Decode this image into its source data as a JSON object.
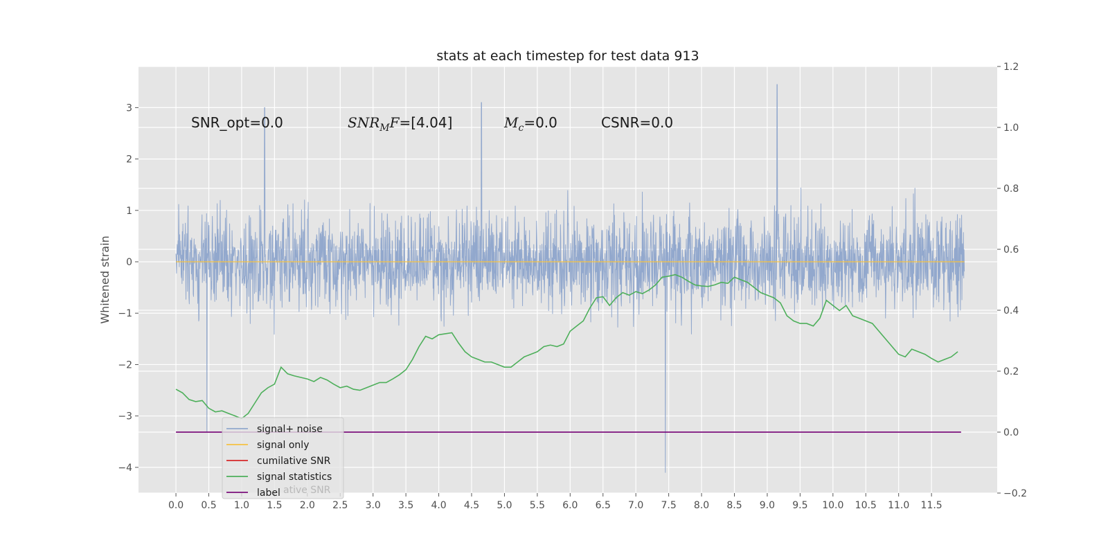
{
  "chart_data": {
    "type": "line",
    "title": "stats at each timestep for test data 913",
    "ylabel": "Whitened strain",
    "xlim": [
      -0.57,
      12.5
    ],
    "ylim": [
      -4.5,
      3.8
    ],
    "y2lim": [
      -0.2,
      1.2
    ],
    "grid": true,
    "legend_placement": "lower-left",
    "x_ticks": [
      "0.0",
      "0.5",
      "1.0",
      "1.5",
      "2.0",
      "2.5",
      "3.0",
      "3.5",
      "4.0",
      "4.5",
      "5.0",
      "5.5",
      "6.0",
      "6.5",
      "7.0",
      "7.5",
      "8.0",
      "8.5",
      "9.0",
      "9.5",
      "10.0",
      "10.5",
      "11.0",
      "11.5"
    ],
    "y_ticks": [
      "3",
      "2",
      "1",
      "0",
      "−1",
      "−2",
      "−3",
      "−4"
    ],
    "y2_ticks": [
      "1.2",
      "1.0",
      "0.8",
      "0.6",
      "0.4",
      "0.2",
      "0.0",
      "−0.2"
    ],
    "annotations": {
      "snr_opt": "SNR_opt=0.0",
      "snr_mf_main": "SNR",
      "snr_mf_sub": "M",
      "snr_mf_tail": "F",
      "snr_mf_value": "=[4.04]",
      "mc_main": "M",
      "mc_sub": "c",
      "mc_value": "=0.0",
      "csnr": "CSNR=0.0"
    },
    "series": [
      {
        "name": "signal+ noise",
        "color": "#92a8cd",
        "axis": "left",
        "x_range": [
          0.0,
          12.0
        ],
        "noise_range": [
          -1.6,
          1.6
        ],
        "peaks": [
          [
            0.47,
            -3.3
          ],
          [
            1.35,
            3.0
          ],
          [
            4.65,
            3.1
          ],
          [
            7.45,
            -4.1
          ],
          [
            9.15,
            3.45
          ],
          [
            6.0,
            -0.3
          ]
        ]
      },
      {
        "name": "signal only",
        "color": "#f5c242",
        "axis": "left",
        "x": [
          0.0,
          12.0
        ],
        "values": [
          0.0,
          0.0
        ]
      },
      {
        "name": "cumilative SNR",
        "color": "#d62728",
        "axis": "right",
        "x": [
          0.0,
          12.0
        ],
        "values": [
          0.0,
          0.0
        ]
      },
      {
        "name": "signal statistics",
        "color": "#4daf5a",
        "axis": "left",
        "x": [
          0.0,
          0.1,
          0.2,
          0.3,
          0.4,
          0.5,
          0.6,
          0.7,
          0.8,
          0.9,
          1.0,
          1.1,
          1.2,
          1.3,
          1.4,
          1.5,
          1.6,
          1.7,
          1.8,
          1.9,
          2.0,
          2.1,
          2.2,
          2.3,
          2.4,
          2.5,
          2.6,
          2.7,
          2.8,
          2.9,
          3.0,
          3.1,
          3.2,
          3.3,
          3.4,
          3.5,
          3.6,
          3.7,
          3.8,
          3.9,
          4.0,
          4.1,
          4.2,
          4.3,
          4.4,
          4.5,
          4.6,
          4.7,
          4.8,
          4.9,
          5.0,
          5.1,
          5.2,
          5.3,
          5.4,
          5.5,
          5.6,
          5.7,
          5.8,
          5.9,
          6.0,
          6.1,
          6.2,
          6.3,
          6.4,
          6.5,
          6.6,
          6.7,
          6.8,
          6.9,
          7.0,
          7.1,
          7.2,
          7.3,
          7.4,
          7.5,
          7.6,
          7.7,
          7.8,
          7.9,
          8.0,
          8.1,
          8.2,
          8.3,
          8.4,
          8.5,
          8.6,
          8.7,
          8.8,
          8.9,
          9.0,
          9.1,
          9.2,
          9.3,
          9.4,
          9.5,
          9.6,
          9.7,
          9.8,
          9.9,
          10.0,
          10.1,
          10.2,
          10.3,
          10.4,
          10.5,
          10.6,
          10.7,
          10.8,
          10.9,
          11.0,
          11.1,
          11.2,
          11.3,
          11.4,
          11.5,
          11.6,
          11.7,
          11.8,
          11.9
        ],
        "values": [
          -2.48,
          -2.55,
          -2.68,
          -2.72,
          -2.7,
          -2.85,
          -2.92,
          -2.9,
          -2.95,
          -3.0,
          -3.05,
          -2.95,
          -2.75,
          -2.55,
          -2.45,
          -2.38,
          -2.05,
          -2.18,
          -2.22,
          -2.25,
          -2.28,
          -2.33,
          -2.25,
          -2.3,
          -2.38,
          -2.45,
          -2.42,
          -2.48,
          -2.5,
          -2.45,
          -2.4,
          -2.35,
          -2.35,
          -2.28,
          -2.2,
          -2.1,
          -1.9,
          -1.65,
          -1.45,
          -1.5,
          -1.42,
          -1.4,
          -1.38,
          -1.58,
          -1.75,
          -1.85,
          -1.9,
          -1.95,
          -1.95,
          -2.0,
          -2.05,
          -2.05,
          -1.95,
          -1.85,
          -1.8,
          -1.75,
          -1.65,
          -1.62,
          -1.65,
          -1.6,
          -1.35,
          -1.25,
          -1.15,
          -0.9,
          -0.7,
          -0.68,
          -0.85,
          -0.7,
          -0.6,
          -0.65,
          -0.58,
          -0.62,
          -0.55,
          -0.45,
          -0.3,
          -0.28,
          -0.25,
          -0.3,
          -0.38,
          -0.45,
          -0.47,
          -0.48,
          -0.45,
          -0.4,
          -0.42,
          -0.3,
          -0.35,
          -0.4,
          -0.5,
          -0.6,
          -0.65,
          -0.7,
          -0.8,
          -1.05,
          -1.15,
          -1.2,
          -1.2,
          -1.25,
          -1.1,
          -0.75,
          -0.85,
          -0.95,
          -0.85,
          -1.05,
          -1.1,
          -1.15,
          -1.2,
          -1.35,
          -1.5,
          -1.65,
          -1.8,
          -1.85,
          -1.7,
          -1.75,
          -1.8,
          -1.88,
          -1.95,
          -1.9,
          -1.85,
          -1.75
        ]
      },
      {
        "name": "label",
        "color": "#7b0e7b",
        "axis": "right",
        "x": [
          0.0,
          11.95
        ],
        "values": [
          0.0,
          0.0
        ]
      }
    ],
    "legend_overlap_text": "ative SNR"
  }
}
